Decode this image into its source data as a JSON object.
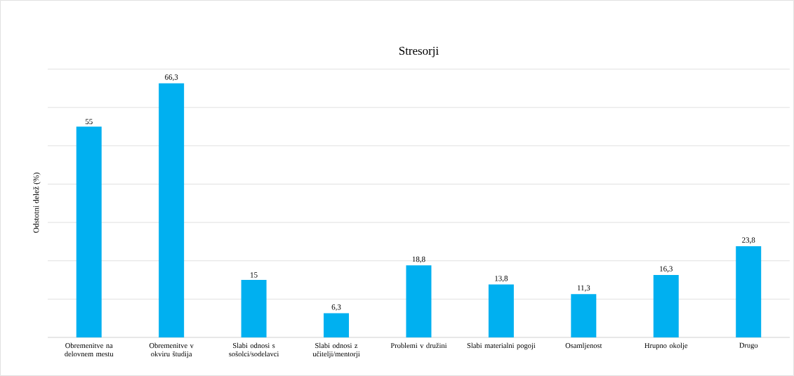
{
  "chart_data": {
    "type": "bar",
    "title": "Stresorji",
    "ylabel": "Odstotni delež (%)",
    "categories": [
      "Obremenitve na delovnem mestu",
      "Obremenitve v okviru študija",
      "Slabi odnosi s sošolci/sodelavci",
      "Slabi odnosi z učitelji/mentorji",
      "Problemi v družini",
      "Slabi materialni pogoji",
      "Osamljenost",
      "Hrupno okolje",
      "Drugo"
    ],
    "values": [
      55,
      66.3,
      15,
      6.3,
      18.8,
      13.8,
      11.3,
      16.3,
      23.8
    ],
    "value_labels": [
      "55",
      "66,3",
      "15",
      "6,3",
      "18,8",
      "13,8",
      "11,3",
      "16,3",
      "23,8"
    ],
    "color": "#00b0f0",
    "grid": "y",
    "tick_labels": "x"
  }
}
